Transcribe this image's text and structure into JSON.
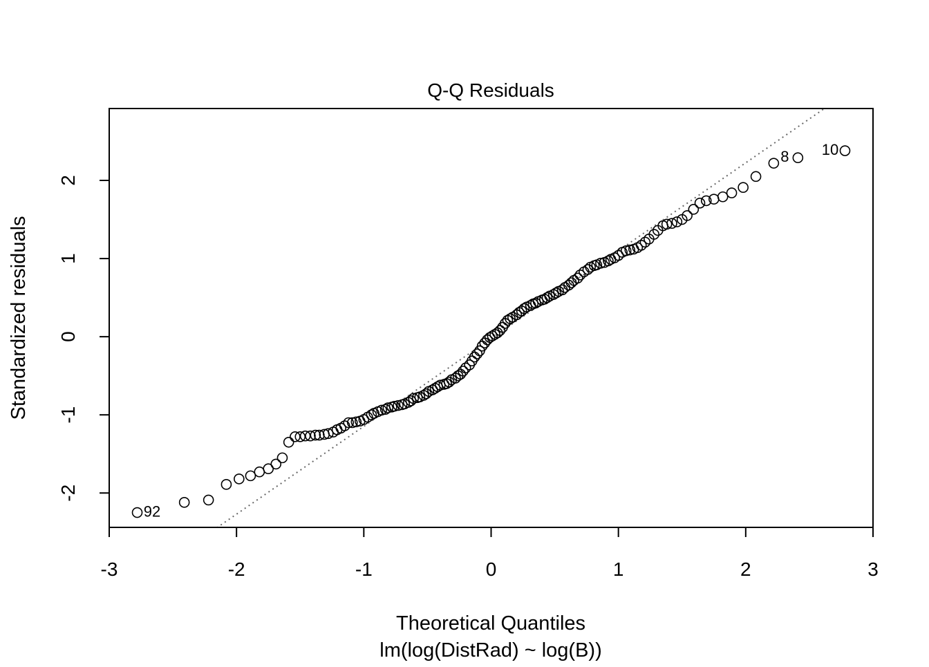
{
  "chart_data": {
    "type": "scatter",
    "title": "Q-Q Residuals",
    "x_label": "Theoretical Quantiles",
    "subtitle": "lm(log(DistRad) ~ log(B))",
    "y_label": "Standardized residuals",
    "xlim": [
      -3,
      3
    ],
    "ylim": [
      -2.44,
      2.92
    ],
    "xticks": [
      -3,
      -2,
      -1,
      0,
      1,
      2,
      3
    ],
    "yticks": [
      -2,
      -1,
      0,
      1,
      2
    ],
    "color": "#000000",
    "reference_line": {
      "slope": 1.124,
      "intercept": -0.023,
      "color": "#666666"
    },
    "annotations": [
      {
        "text": "92",
        "x": -2.73,
        "y": -2.25,
        "anchor": "start"
      },
      {
        "text": "8",
        "x": 2.34,
        "y": 2.29,
        "anchor": "end"
      },
      {
        "text": "10",
        "x": 2.73,
        "y": 2.38,
        "anchor": "end"
      }
    ],
    "x": [
      -2.78,
      -2.41,
      -2.22,
      -2.08,
      -1.98,
      -1.89,
      -1.82,
      -1.75,
      -1.69,
      -1.64,
      -1.59,
      -1.54,
      -1.5,
      -1.46,
      -1.42,
      -1.38,
      -1.35,
      -1.31,
      -1.28,
      -1.24,
      -1.21,
      -1.18,
      -1.15,
      -1.12,
      -1.09,
      -1.06,
      -1.03,
      -1.0,
      -0.97,
      -0.94,
      -0.92,
      -0.89,
      -0.86,
      -0.83,
      -0.81,
      -0.78,
      -0.76,
      -0.73,
      -0.7,
      -0.68,
      -0.65,
      -0.63,
      -0.61,
      -0.58,
      -0.56,
      -0.53,
      -0.51,
      -0.49,
      -0.46,
      -0.44,
      -0.42,
      -0.4,
      -0.37,
      -0.35,
      -0.33,
      -0.31,
      -0.28,
      -0.26,
      -0.24,
      -0.22,
      -0.2,
      -0.17,
      -0.15,
      -0.13,
      -0.11,
      -0.09,
      -0.07,
      -0.05,
      -0.03,
      -0.01,
      0.01,
      0.03,
      0.05,
      0.07,
      0.09,
      0.11,
      0.13,
      0.15,
      0.17,
      0.2,
      0.22,
      0.24,
      0.26,
      0.28,
      0.31,
      0.33,
      0.35,
      0.37,
      0.4,
      0.42,
      0.44,
      0.46,
      0.49,
      0.51,
      0.53,
      0.56,
      0.58,
      0.61,
      0.63,
      0.65,
      0.68,
      0.7,
      0.73,
      0.76,
      0.78,
      0.81,
      0.83,
      0.86,
      0.89,
      0.92,
      0.94,
      0.97,
      1.0,
      1.03,
      1.06,
      1.09,
      1.12,
      1.15,
      1.18,
      1.21,
      1.24,
      1.28,
      1.31,
      1.35,
      1.38,
      1.42,
      1.46,
      1.5,
      1.54,
      1.59,
      1.64,
      1.69,
      1.75,
      1.82,
      1.89,
      1.98,
      2.08,
      2.22,
      2.41,
      2.78
    ],
    "values": [
      -2.25,
      -2.12,
      -2.09,
      -1.89,
      -1.82,
      -1.78,
      -1.73,
      -1.69,
      -1.63,
      -1.55,
      -1.35,
      -1.28,
      -1.28,
      -1.27,
      -1.27,
      -1.26,
      -1.26,
      -1.25,
      -1.24,
      -1.22,
      -1.19,
      -1.17,
      -1.14,
      -1.1,
      -1.1,
      -1.09,
      -1.08,
      -1.06,
      -1.03,
      -1.0,
      -0.98,
      -0.96,
      -0.94,
      -0.93,
      -0.91,
      -0.9,
      -0.89,
      -0.88,
      -0.87,
      -0.86,
      -0.84,
      -0.82,
      -0.79,
      -0.78,
      -0.77,
      -0.75,
      -0.73,
      -0.7,
      -0.68,
      -0.66,
      -0.64,
      -0.62,
      -0.61,
      -0.6,
      -0.58,
      -0.55,
      -0.53,
      -0.5,
      -0.48,
      -0.44,
      -0.4,
      -0.36,
      -0.31,
      -0.26,
      -0.22,
      -0.18,
      -0.12,
      -0.08,
      -0.04,
      -0.01,
      0.01,
      0.03,
      0.05,
      0.08,
      0.12,
      0.17,
      0.21,
      0.23,
      0.25,
      0.28,
      0.31,
      0.33,
      0.36,
      0.38,
      0.4,
      0.42,
      0.43,
      0.45,
      0.47,
      0.48,
      0.5,
      0.52,
      0.54,
      0.56,
      0.58,
      0.6,
      0.63,
      0.66,
      0.69,
      0.72,
      0.75,
      0.79,
      0.83,
      0.86,
      0.89,
      0.91,
      0.92,
      0.94,
      0.95,
      0.97,
      0.99,
      1.01,
      1.04,
      1.08,
      1.1,
      1.11,
      1.12,
      1.14,
      1.17,
      1.21,
      1.25,
      1.31,
      1.36,
      1.42,
      1.44,
      1.45,
      1.47,
      1.5,
      1.55,
      1.63,
      1.71,
      1.74,
      1.76,
      1.79,
      1.84,
      1.91,
      2.05,
      2.22,
      2.29,
      2.38
    ]
  }
}
